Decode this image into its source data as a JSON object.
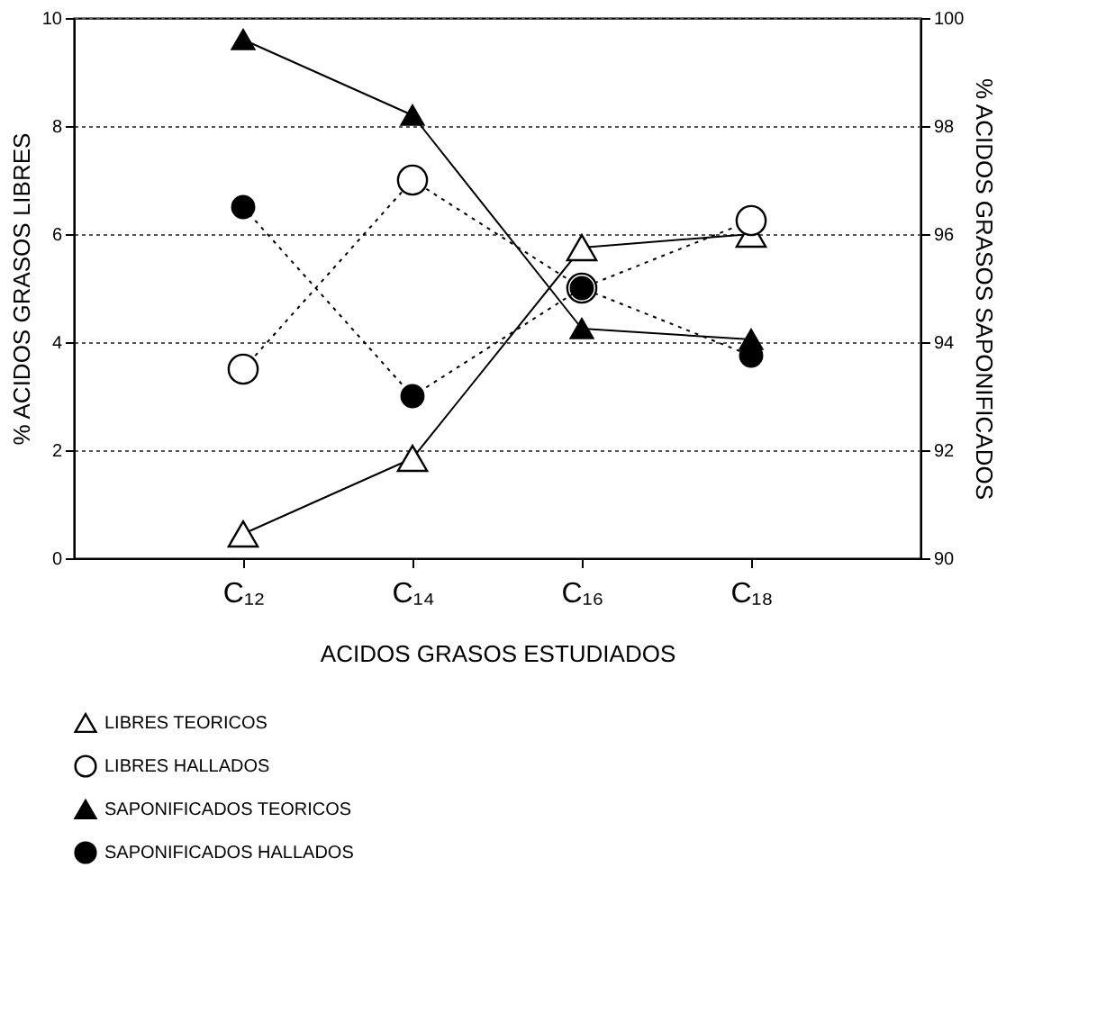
{
  "chart_data": {
    "type": "line",
    "categories": [
      "C₁₂",
      "C₁₄",
      "C₁₆",
      "C₁₈"
    ],
    "xlabel": "ACIDOS GRASOS ESTUDIADOS",
    "ylabel": "% ACIDOS GRASOS LIBRES",
    "y2label": "% ACIDOS GRASOS SAPONIFICADOS",
    "ylim": [
      0,
      10
    ],
    "yticks": [
      0,
      2,
      4,
      6,
      8,
      10
    ],
    "y2lim": [
      90,
      100
    ],
    "y2ticks": [
      90,
      92,
      94,
      96,
      98,
      100
    ],
    "grid": "y",
    "legend": "bottom",
    "series": [
      {
        "name": "LIBRES TEORICOS",
        "color": "#000000",
        "marker": "triangle",
        "line_style": "solid",
        "values": [
          0.45,
          1.85,
          5.75,
          6.0
        ]
      },
      {
        "name": "LIBRES HALLADOS",
        "color": "#000000",
        "marker": "circle",
        "line_style": "dotted",
        "values": [
          3.5,
          7.0,
          5.0,
          6.25
        ]
      },
      {
        "name": "SAPONIFICADOS TEORICOS",
        "color": "#000000",
        "marker": "triangle",
        "line_style": "solid",
        "axis": "y2",
        "values": [
          99.6,
          98.2,
          94.25,
          94.05
        ]
      },
      {
        "name": "SAPONIFICADOS HALLADOS",
        "color": "#000000",
        "marker": "circle",
        "line_style": "dotted",
        "axis": "y2",
        "values": [
          96.5,
          93.0,
          95.0,
          93.75
        ]
      }
    ]
  }
}
